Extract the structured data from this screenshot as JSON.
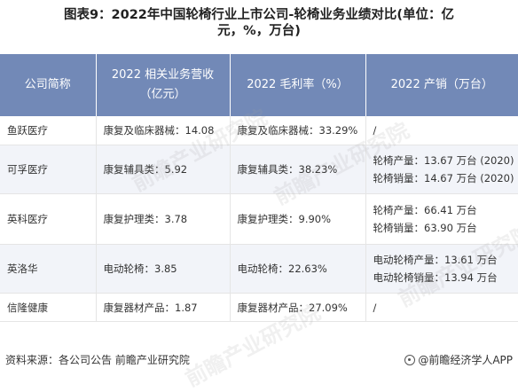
{
  "title": {
    "line1": "图表9：2022年中国轮椅行业上市公司-轮椅业务业绩对比(单位：亿",
    "line2": "元，%，万台)"
  },
  "table": {
    "headers": [
      "公司简称",
      "2022 相关业务营收",
      "（亿元）",
      "2022 毛利率（%）",
      "2022 产销（万台）"
    ],
    "rows": [
      {
        "company": "鱼跃医疗",
        "revenue": "康复及临床器械：14.08",
        "margin": "康复及临床器械：33.29%",
        "output": [
          "/"
        ]
      },
      {
        "company": "可孚医疗",
        "revenue": "康复辅具类：5.92",
        "margin": "康复辅具类：38.23%",
        "output": [
          "轮椅产量：13.67 万台 (2020)",
          "轮椅销量：14.67 万台 (2020)"
        ]
      },
      {
        "company": "英科医疗",
        "revenue": "康复护理类：3.78",
        "margin": "康复护理类：9.90%",
        "output": [
          "轮椅产量：66.41 万台",
          "轮椅销量：63.90 万台"
        ]
      },
      {
        "company": "英洛华",
        "revenue": "电动轮椅：3.85",
        "margin": "电动轮椅：22.63%",
        "output": [
          "电动轮椅产量：13.61 万台",
          "电动轮椅销量：13.94 万台"
        ]
      },
      {
        "company": "信隆健康",
        "revenue": "康复器材产品：1.87",
        "margin": "康复器材产品：27.09%",
        "output": [
          "/"
        ]
      }
    ]
  },
  "watermark": "前瞻产业研究院",
  "footer": {
    "source": "资料来源：各公司公告 前瞻产业研究院",
    "brand": "@前瞻经济学人APP"
  }
}
